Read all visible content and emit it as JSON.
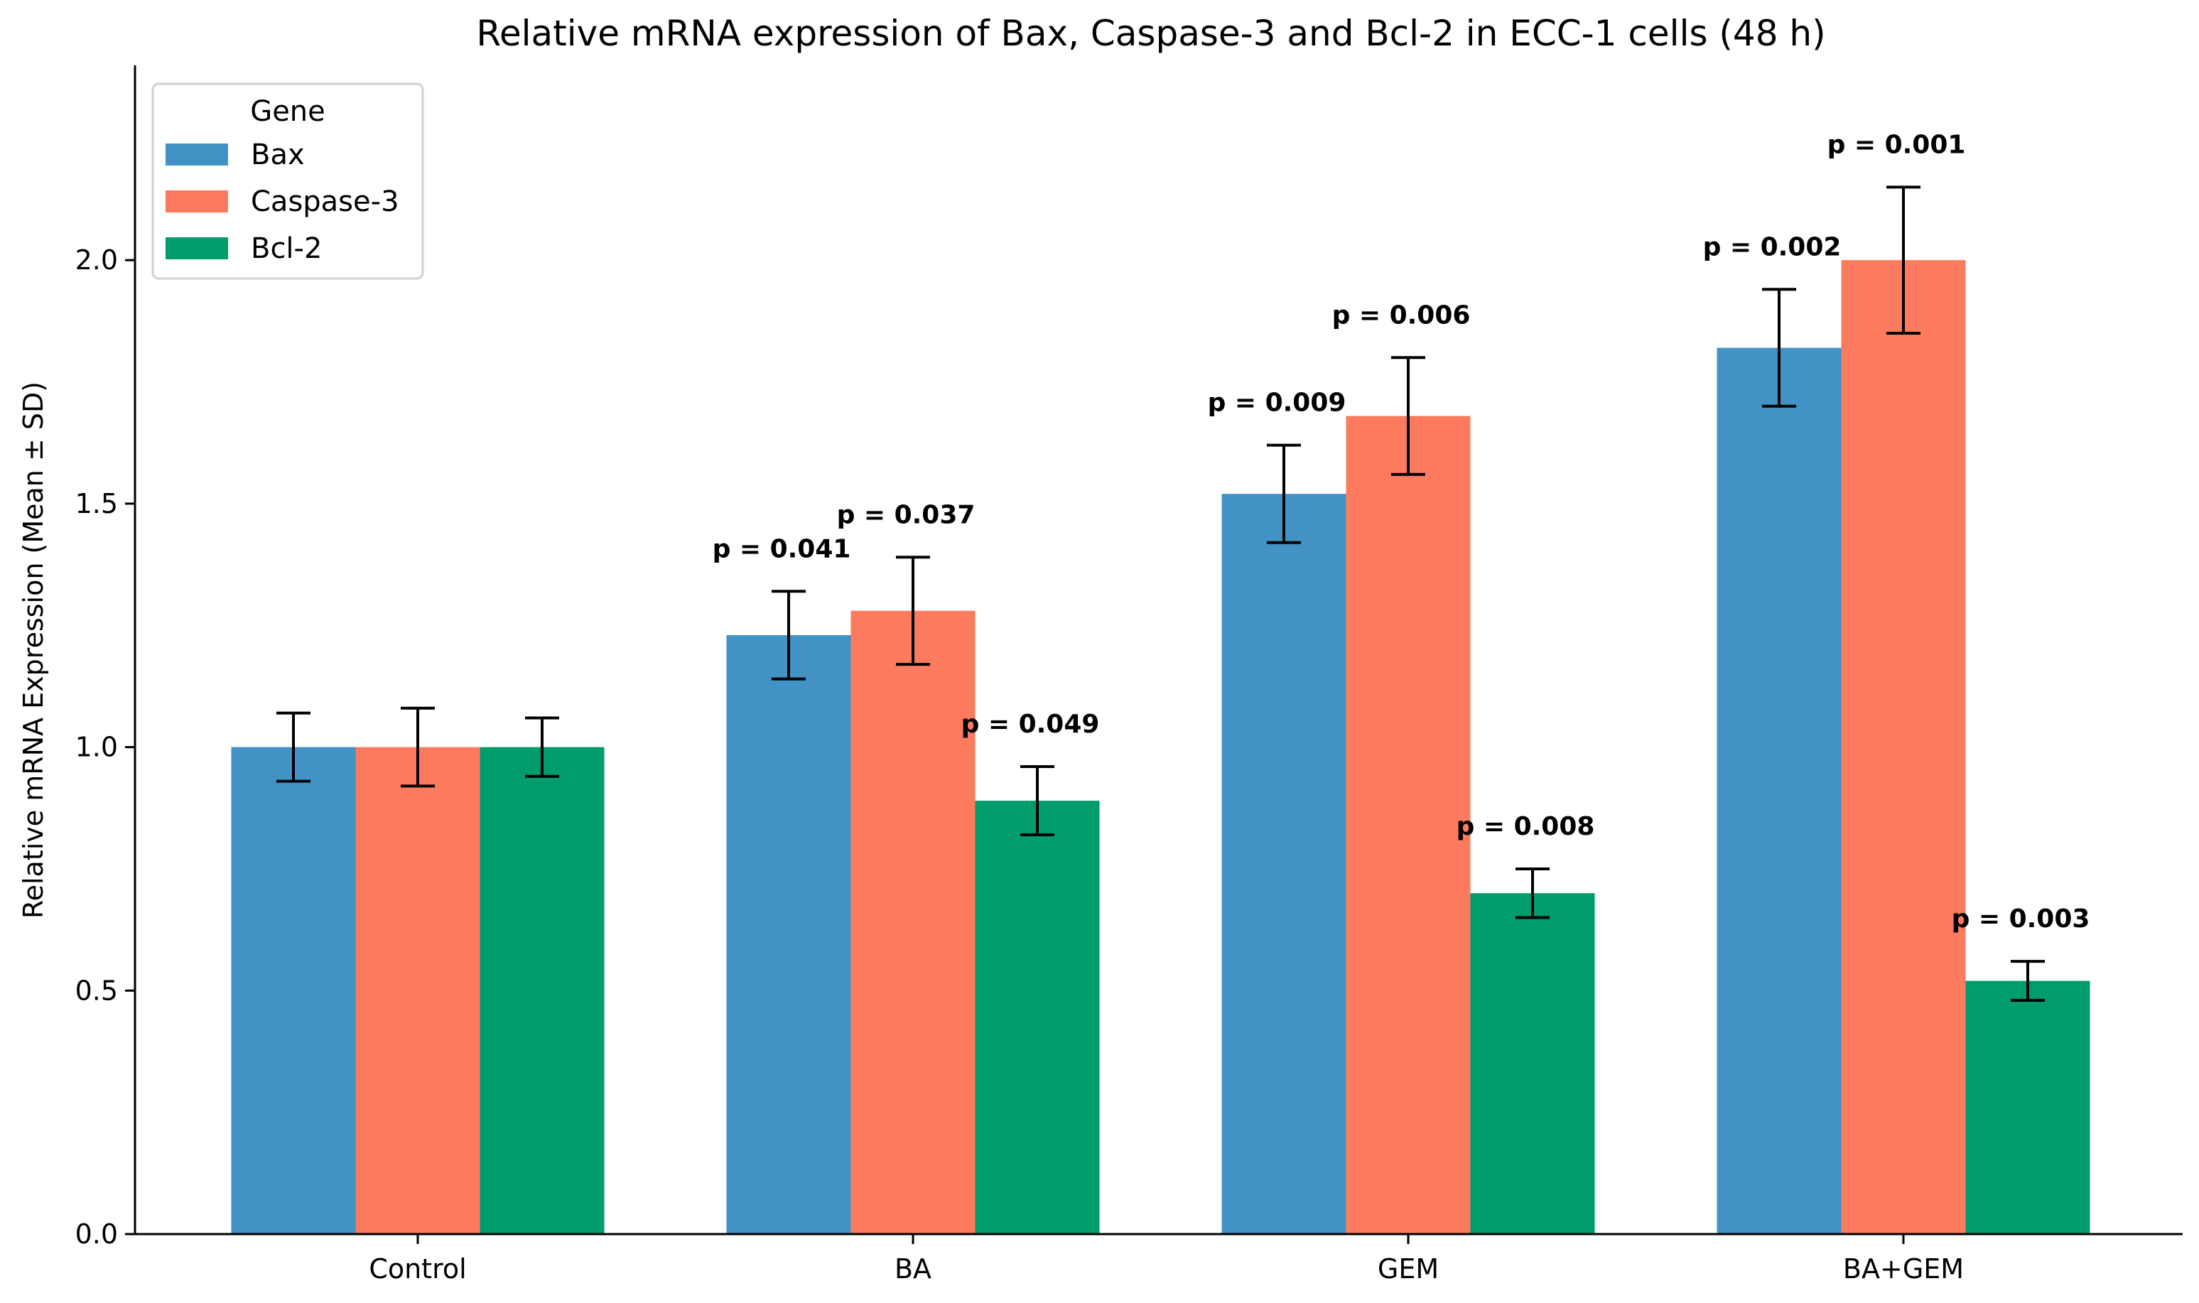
{
  "chart_data": {
    "type": "bar",
    "title": "Relative mRNA expression of Bax, Caspase-3 and Bcl-2 in ECC-1 cells (48 h)",
    "xlabel": "",
    "ylabel": "Relative mRNA Expression (Mean ± SD)",
    "ylim": [
      0,
      2.4
    ],
    "yticks": [
      0.0,
      0.5,
      1.0,
      1.5,
      2.0
    ],
    "ytick_labels": [
      "0.0",
      "0.5",
      "1.0",
      "1.5",
      "2.0"
    ],
    "grid": false,
    "categories": [
      "Control",
      "BA",
      "GEM",
      "BA+GEM"
    ],
    "legend": {
      "title": "Gene",
      "placement": "top-left"
    },
    "series": [
      {
        "name": "Bax",
        "color": "#4292c6",
        "values": [
          1.0,
          1.23,
          1.52,
          1.82
        ],
        "errors": [
          0.07,
          0.09,
          0.1,
          0.12
        ],
        "annotations": [
          "",
          "p = 0.041",
          "p = 0.009",
          "p = 0.002"
        ]
      },
      {
        "name": "Caspase-3",
        "color": "#fc7b5e",
        "values": [
          1.0,
          1.28,
          1.68,
          2.0
        ],
        "errors": [
          0.08,
          0.11,
          0.12,
          0.15
        ],
        "annotations": [
          "",
          "p = 0.037",
          "p = 0.006",
          "p = 0.001"
        ]
      },
      {
        "name": "Bcl-2",
        "color": "#009c6b",
        "values": [
          1.0,
          0.89,
          0.7,
          0.52
        ],
        "errors": [
          0.06,
          0.07,
          0.05,
          0.04
        ],
        "annotations": [
          "",
          "p = 0.049",
          "p = 0.008",
          "p = 0.003"
        ]
      }
    ]
  }
}
